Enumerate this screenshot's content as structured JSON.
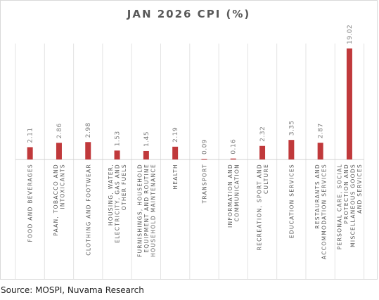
{
  "chart_data": {
    "type": "bar",
    "title": "JAN 2026 CPI (%)",
    "categories": [
      "FOOD AND BEVERAGES",
      "PAAN, TOBACCO AND INTOXICANTS",
      "CLOTHING AND FOOTWEAR",
      "HOUSING, WATER, ELECTRICITY, GAS AND OTHER FUELS",
      "FURNISHINGS, HOUSEHOLD EQUIPMENT AND ROUTINE HOUSEHOLD MAINTENANCE",
      "HEALTH",
      "TRANSPORT",
      "INFORMATION AND COMMUNICATION",
      "RECREATION, SPORT AND CULTURE",
      "EDUCATION SERVICES",
      "RESTAURANTS AND ACCOMMODATION SERVICES",
      "PERSONAL CARE, SOCIAL PROTECTION AND MISCELLANEOUS GOODS AND SERVICES"
    ],
    "values": [
      2.11,
      2.86,
      2.98,
      1.53,
      1.45,
      2.19,
      0.09,
      0.16,
      2.32,
      3.35,
      2.87,
      19.02
    ],
    "value_labels": [
      "2.11",
      "2.86",
      "2.98",
      "1.53",
      "1.45",
      "2.19",
      "0.09",
      "0.16",
      "2.32",
      "3.35",
      "2.87",
      "19.02"
    ],
    "xlabel": "",
    "ylabel": "",
    "ylim": [
      0,
      20
    ],
    "grid": "vertical category separators",
    "legend": "none",
    "bar_color": "#c0393b"
  },
  "source": "Source: MOSPI, Nuvama Research"
}
